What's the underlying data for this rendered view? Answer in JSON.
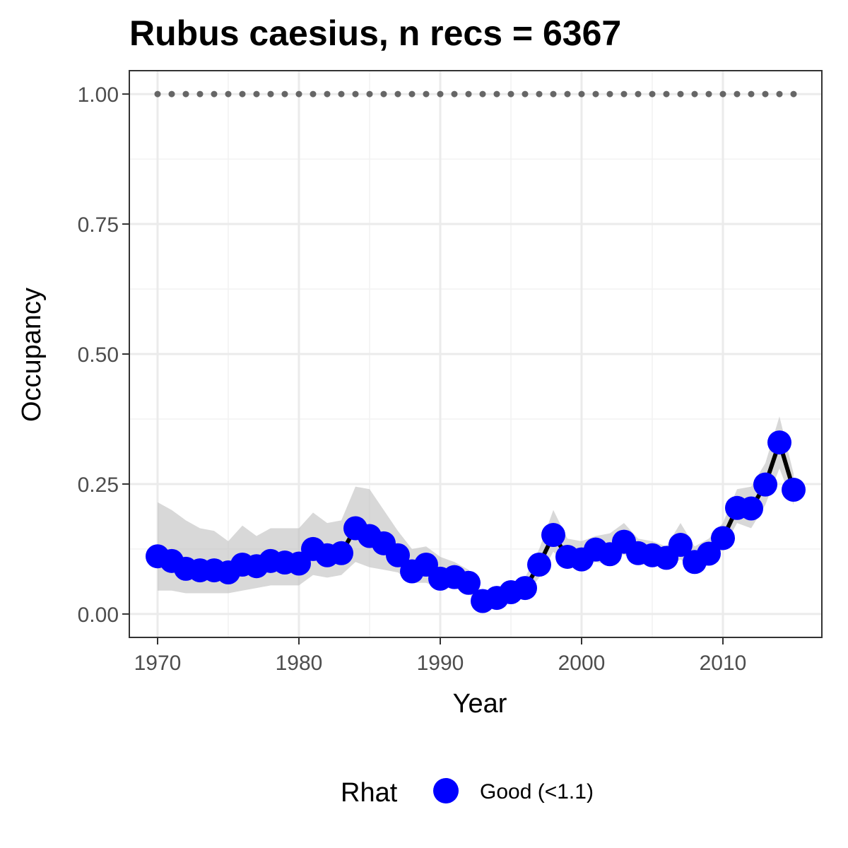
{
  "chart_data": {
    "type": "line",
    "title": "Rubus caesius, n recs = 6367",
    "xlabel": "Year",
    "ylabel": "Occupancy",
    "xlim": [
      1968,
      2017
    ],
    "ylim": [
      -0.045,
      1.045
    ],
    "x_ticks": [
      1970,
      1980,
      1990,
      2000,
      2010
    ],
    "x_tick_labels": [
      "1970",
      "1980",
      "1990",
      "2000",
      "2010"
    ],
    "y_ticks": [
      0,
      0.25,
      0.5,
      0.75,
      1.0
    ],
    "y_tick_labels": [
      "0.00",
      "0.25",
      "0.50",
      "0.75",
      "1.00"
    ],
    "grid": true,
    "x": [
      1970,
      1971,
      1972,
      1973,
      1974,
      1975,
      1976,
      1977,
      1978,
      1979,
      1980,
      1981,
      1982,
      1983,
      1984,
      1985,
      1986,
      1987,
      1988,
      1989,
      1990,
      1991,
      1992,
      1993,
      1994,
      1995,
      1996,
      1997,
      1998,
      1999,
      2000,
      2001,
      2002,
      2003,
      2004,
      2005,
      2006,
      2007,
      2008,
      2009,
      2010,
      2011,
      2012,
      2013,
      2014,
      2015
    ],
    "series": [
      {
        "name": "Occupancy",
        "values": [
          0.111,
          0.102,
          0.087,
          0.084,
          0.084,
          0.08,
          0.095,
          0.092,
          0.102,
          0.099,
          0.097,
          0.125,
          0.113,
          0.117,
          0.165,
          0.15,
          0.136,
          0.113,
          0.082,
          0.095,
          0.068,
          0.071,
          0.06,
          0.025,
          0.031,
          0.042,
          0.05,
          0.095,
          0.152,
          0.11,
          0.105,
          0.124,
          0.115,
          0.139,
          0.117,
          0.113,
          0.108,
          0.133,
          0.1,
          0.116,
          0.146,
          0.204,
          0.203,
          0.249,
          0.33,
          0.239
        ],
        "lower": [
          0.045,
          0.045,
          0.04,
          0.04,
          0.04,
          0.04,
          0.045,
          0.05,
          0.055,
          0.055,
          0.055,
          0.075,
          0.07,
          0.075,
          0.1,
          0.09,
          0.085,
          0.08,
          0.06,
          0.06,
          0.05,
          0.05,
          0.04,
          0.015,
          0.02,
          0.025,
          0.035,
          0.07,
          0.12,
          0.09,
          0.09,
          0.1,
          0.095,
          0.115,
          0.095,
          0.095,
          0.09,
          0.105,
          0.08,
          0.095,
          0.125,
          0.175,
          0.165,
          0.21,
          0.28,
          0.21
        ],
        "upper": [
          0.215,
          0.2,
          0.18,
          0.165,
          0.16,
          0.14,
          0.17,
          0.15,
          0.165,
          0.165,
          0.165,
          0.195,
          0.175,
          0.18,
          0.245,
          0.24,
          0.2,
          0.16,
          0.125,
          0.13,
          0.11,
          0.1,
          0.085,
          0.04,
          0.045,
          0.06,
          0.07,
          0.125,
          0.2,
          0.145,
          0.14,
          0.15,
          0.155,
          0.175,
          0.145,
          0.14,
          0.13,
          0.175,
          0.13,
          0.145,
          0.175,
          0.24,
          0.245,
          0.29,
          0.38,
          0.27
        ],
        "color": "#0000ff"
      },
      {
        "name": "reference",
        "values": [
          1,
          1,
          1,
          1,
          1,
          1,
          1,
          1,
          1,
          1,
          1,
          1,
          1,
          1,
          1,
          1,
          1,
          1,
          1,
          1,
          1,
          1,
          1,
          1,
          1,
          1,
          1,
          1,
          1,
          1,
          1,
          1,
          1,
          1,
          1,
          1,
          1,
          1,
          1,
          1,
          1,
          1,
          1,
          1,
          1,
          1
        ],
        "color": "#666666"
      }
    ],
    "legend": {
      "title": "Rhat",
      "entries": [
        "Good (<1.1)"
      ],
      "placement": "bottom"
    }
  }
}
